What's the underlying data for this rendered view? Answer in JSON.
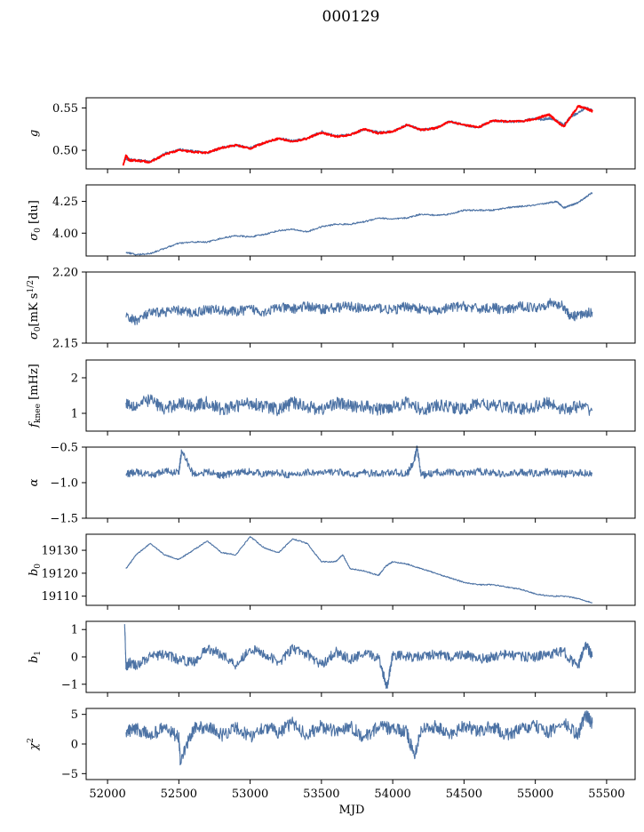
{
  "figure": {
    "title": "000129"
  },
  "chart_data": [
    {
      "type": "line",
      "id": "g",
      "ylabel": "g",
      "xlim": [
        51850,
        55700
      ],
      "ylim": [
        0.478,
        0.562
      ],
      "yticks": [
        0.5,
        0.55
      ],
      "ytick_labels": [
        "0.50",
        "0.55"
      ],
      "xtick_labels_visible": false,
      "series": [
        {
          "color": "#4c72a4",
          "x": [
            52130,
            52200,
            52300,
            52400,
            52500,
            52600,
            52700,
            52800,
            52900,
            53000,
            53100,
            53200,
            53300,
            53400,
            53500,
            53600,
            53700,
            53800,
            53900,
            54000,
            54100,
            54200,
            54300,
            54400,
            54500,
            54600,
            54700,
            54800,
            54900,
            55000,
            55050,
            55100,
            55150,
            55200,
            55250,
            55300,
            55350,
            55400
          ],
          "y": [
            0.49,
            0.488,
            0.487,
            0.496,
            0.501,
            0.499,
            0.497,
            0.503,
            0.506,
            0.503,
            0.509,
            0.514,
            0.511,
            0.514,
            0.522,
            0.517,
            0.518,
            0.525,
            0.521,
            0.522,
            0.53,
            0.524,
            0.526,
            0.534,
            0.53,
            0.527,
            0.535,
            0.534,
            0.534,
            0.538,
            0.536,
            0.538,
            0.535,
            0.53,
            0.54,
            0.544,
            0.55,
            0.548
          ]
        },
        {
          "color": "#ff0000",
          "x": [
            52110,
            52130,
            52150,
            52200,
            52300,
            52400,
            52500,
            52600,
            52700,
            52800,
            52900,
            53000,
            53100,
            53200,
            53300,
            53400,
            53500,
            53600,
            53700,
            53800,
            53900,
            54000,
            54100,
            54200,
            54300,
            54400,
            54500,
            54600,
            54700,
            54800,
            54900,
            55000,
            55050,
            55100,
            55150,
            55200,
            55250,
            55300,
            55350,
            55400
          ],
          "y": [
            0.482,
            0.494,
            0.488,
            0.488,
            0.486,
            0.495,
            0.5,
            0.498,
            0.497,
            0.503,
            0.506,
            0.502,
            0.509,
            0.514,
            0.51,
            0.514,
            0.521,
            0.516,
            0.518,
            0.525,
            0.52,
            0.522,
            0.53,
            0.524,
            0.526,
            0.534,
            0.53,
            0.527,
            0.535,
            0.534,
            0.534,
            0.537,
            0.54,
            0.542,
            0.534,
            0.528,
            0.54,
            0.552,
            0.55,
            0.546
          ]
        }
      ]
    },
    {
      "type": "line",
      "id": "sigma0-du",
      "ylabel": "σ0 [du]",
      "xlim": [
        51850,
        55700
      ],
      "ylim": [
        3.82,
        4.38
      ],
      "yticks": [
        4.0,
        4.25
      ],
      "ytick_labels": [
        "4.00",
        "4.25"
      ],
      "xtick_labels_visible": false,
      "series": [
        {
          "color": "#4c72a4",
          "x": [
            52130,
            52200,
            52300,
            52400,
            52500,
            52600,
            52700,
            52800,
            52900,
            53000,
            53100,
            53200,
            53300,
            53400,
            53500,
            53600,
            53700,
            53800,
            53900,
            54000,
            54100,
            54200,
            54300,
            54400,
            54500,
            54600,
            54700,
            54800,
            54900,
            55000,
            55100,
            55150,
            55200,
            55250,
            55300,
            55350,
            55400
          ],
          "y": [
            3.85,
            3.83,
            3.84,
            3.88,
            3.92,
            3.93,
            3.93,
            3.96,
            3.98,
            3.97,
            3.99,
            4.02,
            4.03,
            4.01,
            4.05,
            4.07,
            4.07,
            4.09,
            4.12,
            4.11,
            4.12,
            4.15,
            4.14,
            4.15,
            4.18,
            4.18,
            4.18,
            4.2,
            4.21,
            4.22,
            4.24,
            4.25,
            4.2,
            4.22,
            4.24,
            4.28,
            4.32
          ]
        }
      ]
    },
    {
      "type": "line",
      "id": "sigma0-mk",
      "ylabel": "σ0[mK s^1/2]",
      "xlim": [
        51850,
        55700
      ],
      "ylim": [
        2.15,
        2.2
      ],
      "yticks": [
        2.15,
        2.2
      ],
      "ytick_labels": [
        "2.15",
        "2.20"
      ],
      "xtick_labels_visible": false,
      "series": [
        {
          "color": "#4c72a4",
          "x": [
            52130,
            52200,
            52300,
            52400,
            52500,
            52600,
            52700,
            52800,
            52900,
            53000,
            53100,
            53200,
            53300,
            53400,
            53500,
            53600,
            53700,
            53800,
            53900,
            54000,
            54100,
            54200,
            54300,
            54400,
            54500,
            54600,
            54700,
            54800,
            54900,
            55000,
            55100,
            55200,
            55250,
            55300,
            55400
          ],
          "y": [
            2.168,
            2.166,
            2.171,
            2.172,
            2.173,
            2.171,
            2.174,
            2.173,
            2.172,
            2.174,
            2.172,
            2.175,
            2.174,
            2.176,
            2.174,
            2.175,
            2.176,
            2.174,
            2.175,
            2.173,
            2.176,
            2.174,
            2.172,
            2.175,
            2.176,
            2.174,
            2.175,
            2.173,
            2.176,
            2.175,
            2.178,
            2.176,
            2.168,
            2.17,
            2.172
          ]
        }
      ]
    },
    {
      "type": "line",
      "id": "fknee",
      "ylabel": "f_knee [mHz]",
      "xlim": [
        51850,
        55700
      ],
      "ylim": [
        0.5,
        2.5
      ],
      "yticks": [
        1,
        2
      ],
      "ytick_labels": [
        "1",
        "2"
      ],
      "xtick_labels_visible": false,
      "series": [
        {
          "color": "#4c72a4",
          "x": [
            52130,
            52200,
            52300,
            52400,
            52500,
            52600,
            52700,
            52800,
            52900,
            53000,
            53100,
            53200,
            53300,
            53400,
            53500,
            53600,
            53700,
            53800,
            53900,
            54000,
            54100,
            54200,
            54300,
            54400,
            54500,
            54600,
            54700,
            54800,
            54900,
            55000,
            55100,
            55200,
            55300,
            55400
          ],
          "y": [
            1.3,
            1.2,
            1.4,
            1.1,
            1.3,
            1.2,
            1.3,
            1.1,
            1.2,
            1.3,
            1.2,
            1.1,
            1.3,
            1.2,
            1.1,
            1.3,
            1.2,
            1.2,
            1.1,
            1.2,
            1.3,
            1.1,
            1.2,
            1.2,
            1.1,
            1.3,
            1.2,
            1.2,
            1.1,
            1.2,
            1.3,
            1.1,
            1.2,
            1.1
          ]
        }
      ]
    },
    {
      "type": "line",
      "id": "alpha",
      "ylabel": "α",
      "xlim": [
        51850,
        55700
      ],
      "ylim": [
        -1.5,
        -0.5
      ],
      "yticks": [
        -1.5,
        -1.0,
        -0.5
      ],
      "ytick_labels": [
        "−1.5",
        "−1.0",
        "−0.5"
      ],
      "xtick_labels_visible": false,
      "series": [
        {
          "color": "#4c72a4",
          "x": [
            52130,
            52200,
            52300,
            52400,
            52500,
            52520,
            52600,
            52700,
            52800,
            52900,
            53000,
            53100,
            53200,
            53300,
            53400,
            53500,
            53600,
            53700,
            53800,
            53900,
            54000,
            54100,
            54150,
            54170,
            54200,
            54300,
            54400,
            54500,
            54600,
            54700,
            54800,
            54900,
            55000,
            55100,
            55200,
            55300,
            55400
          ],
          "y": [
            -0.88,
            -0.85,
            -0.9,
            -0.84,
            -0.86,
            -0.55,
            -0.88,
            -0.85,
            -0.9,
            -0.86,
            -0.84,
            -0.88,
            -0.86,
            -0.9,
            -0.85,
            -0.87,
            -0.84,
            -0.89,
            -0.86,
            -0.88,
            -0.85,
            -0.88,
            -0.7,
            -0.5,
            -0.9,
            -0.86,
            -0.85,
            -0.88,
            -0.84,
            -0.86,
            -0.89,
            -0.85,
            -0.87,
            -0.84,
            -0.88,
            -0.86,
            -0.87
          ]
        }
      ]
    },
    {
      "type": "line",
      "id": "b0",
      "ylabel": "b0",
      "xlim": [
        51850,
        55700
      ],
      "ylim": [
        19106,
        19137
      ],
      "yticks": [
        19110,
        19120,
        19130
      ],
      "ytick_labels": [
        "19110",
        "19120",
        "19130"
      ],
      "xtick_labels_visible": false,
      "series": [
        {
          "color": "#4c72a4",
          "x": [
            52130,
            52200,
            52300,
            52400,
            52500,
            52600,
            52700,
            52800,
            52900,
            53000,
            53100,
            53200,
            53300,
            53400,
            53500,
            53600,
            53650,
            53700,
            53800,
            53900,
            53950,
            54000,
            54100,
            54200,
            54300,
            54400,
            54500,
            54600,
            54700,
            54800,
            54900,
            55000,
            55100,
            55200,
            55300,
            55400
          ],
          "y": [
            19122,
            19128,
            19133,
            19128,
            19126,
            19130,
            19134,
            19129,
            19128,
            19136,
            19131,
            19129,
            19135,
            19133,
            19125,
            19125,
            19128,
            19122,
            19121,
            19119,
            19123,
            19125,
            19124,
            19122,
            19120,
            19118,
            19116,
            19115,
            19115,
            19114,
            19113,
            19111,
            19110,
            19110,
            19109,
            19107
          ]
        }
      ]
    },
    {
      "type": "line",
      "id": "b1",
      "ylabel": "b1",
      "xlim": [
        51850,
        55700
      ],
      "ylim": [
        -1.3,
        1.3
      ],
      "yticks": [
        -1,
        0,
        1
      ],
      "ytick_labels": [
        "−1",
        "0",
        "1"
      ],
      "xtick_labels_visible": false,
      "series": [
        {
          "color": "#4c72a4",
          "x": [
            52120,
            52130,
            52150,
            52200,
            52300,
            52400,
            52500,
            52600,
            52700,
            52800,
            52900,
            53000,
            53100,
            53200,
            53300,
            53400,
            53500,
            53600,
            53700,
            53800,
            53900,
            53960,
            54000,
            54100,
            54200,
            54300,
            54400,
            54500,
            54600,
            54700,
            54800,
            54900,
            55000,
            55100,
            55200,
            55300,
            55350,
            55400
          ],
          "y": [
            1.2,
            -0.4,
            -0.2,
            -0.3,
            0.0,
            0.1,
            -0.1,
            -0.2,
            0.3,
            0.1,
            -0.3,
            0.3,
            0.1,
            -0.2,
            0.3,
            0.1,
            -0.3,
            0.2,
            -0.1,
            0.1,
            0.0,
            -1.1,
            0.1,
            0.0,
            0.0,
            0.1,
            0.0,
            0.1,
            -0.1,
            0.0,
            0.1,
            0.0,
            0.0,
            0.1,
            0.2,
            -0.4,
            0.5,
            0.0
          ]
        }
      ]
    },
    {
      "type": "line",
      "id": "chi2",
      "ylabel": "χ2",
      "xlim": [
        51850,
        55700
      ],
      "ylim": [
        -6,
        6
      ],
      "yticks": [
        -5,
        0,
        5
      ],
      "ytick_labels": [
        "−5",
        "0",
        "5"
      ],
      "xticks": [
        52000,
        52500,
        53000,
        53500,
        54000,
        54500,
        55000,
        55500
      ],
      "xtick_labels": [
        "52000",
        "52500",
        "53000",
        "53500",
        "54000",
        "54500",
        "55000",
        "55500"
      ],
      "xlabel": "MJD",
      "xtick_labels_visible": true,
      "series": [
        {
          "color": "#4c72a4",
          "x": [
            52130,
            52200,
            52300,
            52400,
            52500,
            52510,
            52600,
            52700,
            52800,
            52900,
            53000,
            53100,
            53200,
            53300,
            53400,
            53500,
            53600,
            53700,
            53800,
            53900,
            54000,
            54100,
            54150,
            54200,
            54300,
            54400,
            54500,
            54600,
            54700,
            54800,
            54900,
            55000,
            55100,
            55200,
            55300,
            55350,
            55400
          ],
          "y": [
            2.0,
            2.5,
            1.5,
            2.8,
            1.0,
            -3.0,
            2.5,
            3.0,
            1.5,
            2.8,
            1.2,
            3.0,
            2.0,
            3.5,
            1.5,
            3.0,
            2.0,
            3.2,
            1.0,
            3.0,
            2.5,
            2.0,
            -2.0,
            2.5,
            3.0,
            1.5,
            3.2,
            2.0,
            3.0,
            1.5,
            2.5,
            3.0,
            2.0,
            3.5,
            1.5,
            5.0,
            3.5
          ]
        }
      ]
    }
  ]
}
